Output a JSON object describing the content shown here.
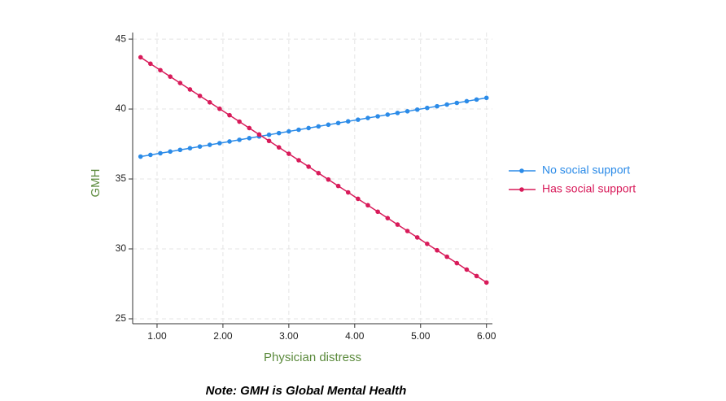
{
  "chart_data": {
    "type": "line",
    "x_label": "Physician distress",
    "y_label": "GMH",
    "note": "Note: GMH is Global Mental Health",
    "x": [
      0.75,
      0.9,
      1.05,
      1.2,
      1.35,
      1.5,
      1.65,
      1.8,
      1.95,
      2.1,
      2.25,
      2.4,
      2.55,
      2.7,
      2.85,
      3,
      3.15,
      3.3,
      3.45,
      3.6,
      3.75,
      3.9,
      4.05,
      4.2,
      4.35,
      4.5,
      4.65,
      4.8,
      4.95,
      5.1,
      5.25,
      5.4,
      5.55,
      5.7,
      5.85,
      6
    ],
    "series": [
      {
        "name": "No social support",
        "color": "#2b8be8",
        "values": [
          36.6,
          36.72,
          36.84,
          36.96,
          37.08,
          37.2,
          37.32,
          37.44,
          37.56,
          37.68,
          37.8,
          37.92,
          38.04,
          38.16,
          38.28,
          38.4,
          38.52,
          38.64,
          38.76,
          38.88,
          39,
          39.12,
          39.24,
          39.36,
          39.48,
          39.6,
          39.72,
          39.84,
          39.96,
          40.08,
          40.2,
          40.32,
          40.44,
          40.56,
          40.68,
          40.8
        ]
      },
      {
        "name": "Has social support",
        "color": "#d81b5a",
        "values": [
          43.7,
          43.24,
          42.78,
          42.32,
          41.86,
          41.4,
          40.94,
          40.48,
          40.02,
          39.56,
          39.1,
          38.64,
          38.18,
          37.72,
          37.26,
          36.8,
          36.34,
          35.88,
          35.42,
          34.96,
          34.5,
          34.04,
          33.58,
          33.12,
          32.66,
          32.2,
          31.74,
          31.28,
          30.82,
          30.36,
          29.9,
          29.44,
          28.98,
          28.52,
          28.06,
          27.6
        ]
      }
    ],
    "xlim": [
      0.63,
      6.09
    ],
    "ylim": [
      24.65,
      45.47
    ],
    "xticks": [
      {
        "value": 1,
        "label": "1.00"
      },
      {
        "value": 2,
        "label": "2.00"
      },
      {
        "value": 3,
        "label": "3.00"
      },
      {
        "value": 4,
        "label": "4.00"
      },
      {
        "value": 5,
        "label": "5.00"
      },
      {
        "value": 6,
        "label": "6.00"
      }
    ],
    "yticks": [
      25,
      30,
      35,
      40,
      45
    ],
    "grid": true,
    "legend_position": "right"
  }
}
